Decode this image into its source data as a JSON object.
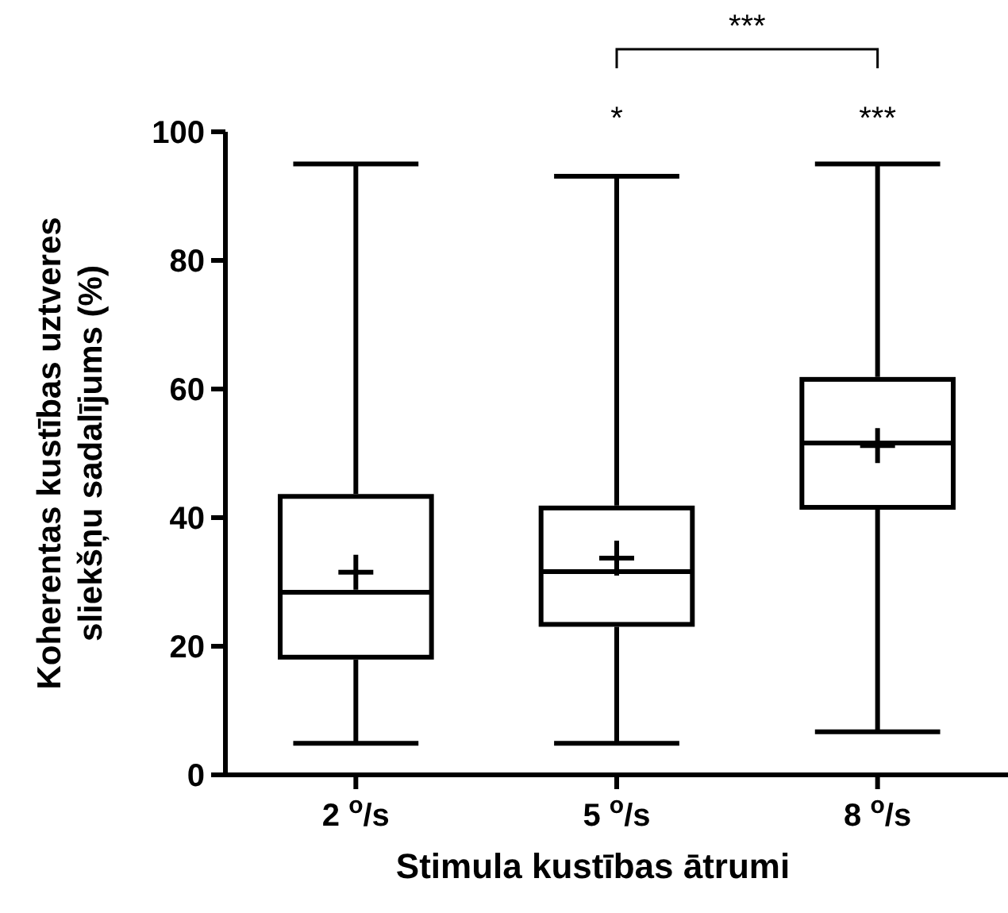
{
  "chart_data": {
    "type": "box",
    "xlabel": "Stimula kustības ātrumi",
    "ylabel": "Koherentas kustības uztveres sliekšņu sadalījums (%)",
    "categories": [
      "2 $^{o}$/s",
      "5 $^{o}$/s",
      "8 $^{o}$/s"
    ],
    "boxes": [
      {
        "low": 4.9,
        "q1": 18.3,
        "median": 28.4,
        "q3": 43.3,
        "high": 95,
        "mean": 31.5
      },
      {
        "low": 4.9,
        "q1": 23.4,
        "median": 31.6,
        "q3": 41.5,
        "high": 93.1,
        "mean": 33.7
      },
      {
        "low": 6.7,
        "q1": 41.6,
        "median": 51.6,
        "q3": 61.5,
        "high": 95,
        "mean": 51.2
      }
    ],
    "color": "#000000",
    "ylim": [
      0,
      100
    ],
    "yticks": [
      0,
      20,
      40,
      60,
      80,
      100
    ],
    "annotations": [
      "*",
      "***",
      "***"
    ]
  }
}
